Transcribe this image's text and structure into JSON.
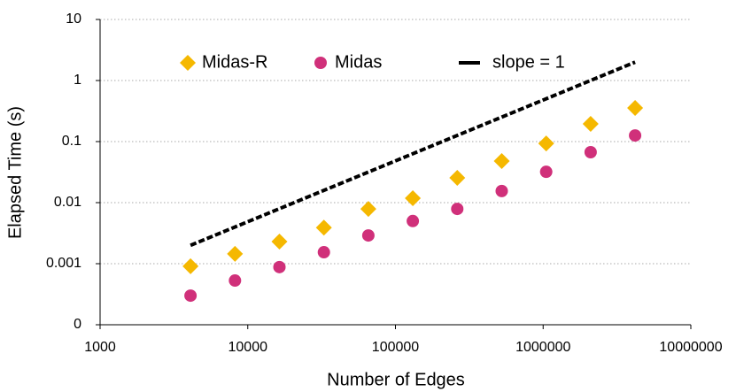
{
  "chart_data": {
    "type": "scatter",
    "xlabel": "Number of Edges",
    "ylabel": "Elapsed Time (s)",
    "xscale": "log",
    "yscale": "log",
    "xlim": [
      1000,
      10000000
    ],
    "xticks": [
      1000,
      10000,
      100000,
      1000000,
      10000000
    ],
    "ylim": [
      0.0001,
      10
    ],
    "yticks": [
      {
        "value": 0.0001,
        "label": "0"
      },
      0.001,
      0.01,
      0.1,
      1,
      10
    ],
    "grid": true,
    "legend": "top",
    "series": [
      {
        "name": "Midas-R",
        "color": "#f5b800",
        "marker": "diamond",
        "x": [
          4096,
          8192,
          16384,
          32768,
          65536,
          131072,
          262144,
          524288,
          1048576,
          2097152,
          4194304
        ],
        "values": [
          0.00091,
          0.00145,
          0.0023,
          0.0039,
          0.0079,
          0.0118,
          0.0255,
          0.048,
          0.093,
          0.195,
          0.355
        ]
      },
      {
        "name": "Midas",
        "color": "#d0307a",
        "marker": "circle",
        "x": [
          4096,
          8192,
          16384,
          32768,
          65536,
          131072,
          262144,
          524288,
          1048576,
          2097152,
          4194304
        ],
        "values": [
          0.0003,
          0.00053,
          0.00088,
          0.00154,
          0.0029,
          0.005,
          0.0079,
          0.0155,
          0.032,
          0.067,
          0.126
        ]
      },
      {
        "name": "slope = 1",
        "color": "#000000",
        "marker": "dashed-line",
        "x": [
          4096,
          4194304
        ],
        "values": [
          0.002,
          2.0
        ]
      }
    ]
  }
}
